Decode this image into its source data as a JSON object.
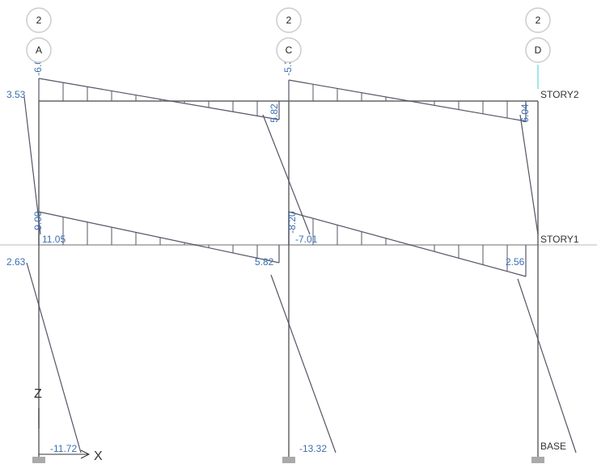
{
  "grid_bubbles": [
    {
      "row": "2",
      "col": "A"
    },
    {
      "row": "2",
      "col": "C"
    },
    {
      "row": "2",
      "col": "D"
    }
  ],
  "stories": [
    "STORY2",
    "STORY1",
    "BASE"
  ],
  "moment_labels": [
    "-6.01",
    "-5.32",
    "3.53",
    "5.82",
    "6.04",
    "-9.00",
    "-8.20",
    "11.05",
    "-7.01",
    "2.63",
    "5.82",
    "2.56",
    "-11.72",
    "-13.32"
  ],
  "axes": {
    "z": "Z",
    "x": "X"
  }
}
